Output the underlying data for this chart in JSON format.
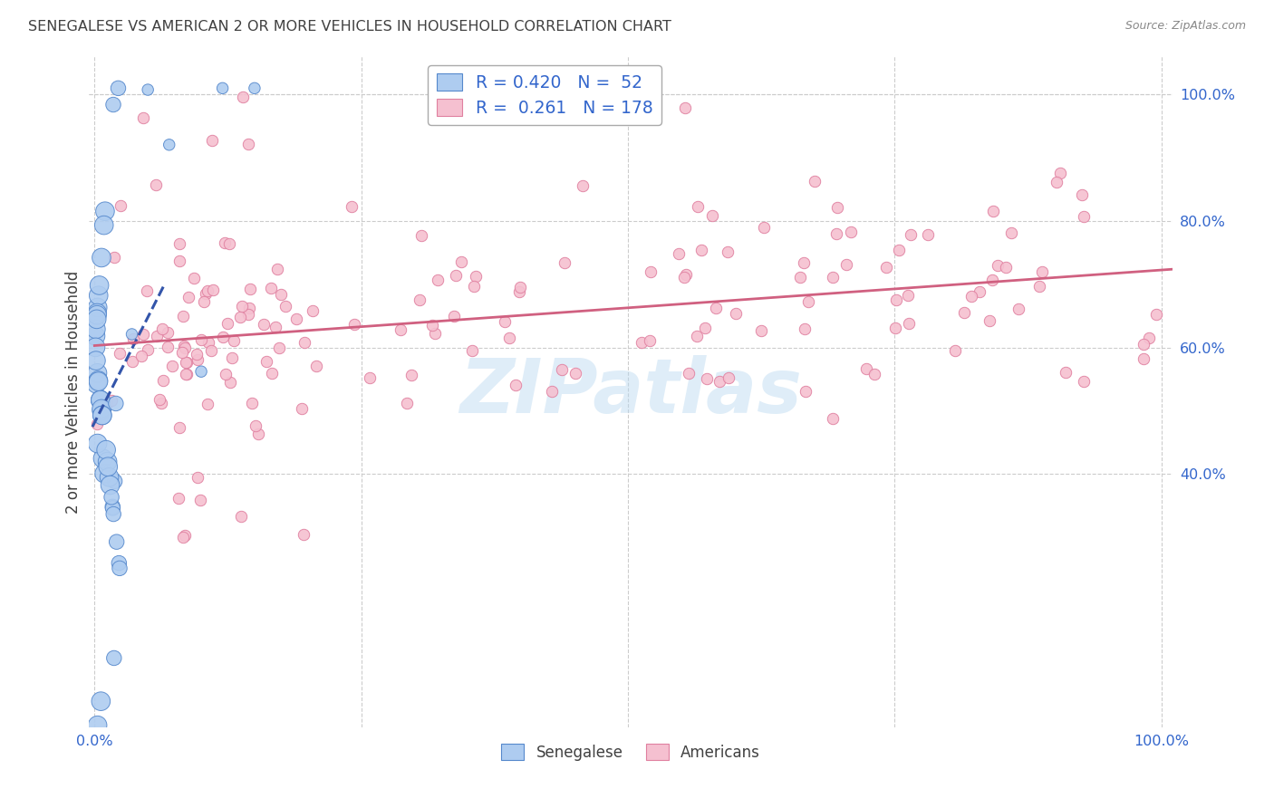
{
  "title": "SENEGALESE VS AMERICAN 2 OR MORE VEHICLES IN HOUSEHOLD CORRELATION CHART",
  "source": "Source: ZipAtlas.com",
  "ylabel": "2 or more Vehicles in Household",
  "watermark": "ZIPatlas",
  "legend_1_label": "Senegalese",
  "legend_1_R": "0.420",
  "legend_1_N": "52",
  "legend_1_color": "#aeccf0",
  "legend_1_edge_color": "#5588cc",
  "legend_1_line_color": "#3355aa",
  "legend_2_label": "Americans",
  "legend_2_R": "0.261",
  "legend_2_N": "178",
  "legend_2_color": "#f5c0d0",
  "legend_2_edge_color": "#e080a0",
  "legend_2_line_color": "#d06080",
  "text_color": "#3366cc",
  "title_color": "#404040",
  "background_color": "#ffffff",
  "grid_color": "#cccccc",
  "ylim": [
    0.0,
    1.06
  ],
  "xlim": [
    -0.005,
    1.01
  ],
  "yticks": [
    0.4,
    0.6,
    0.8,
    1.0
  ],
  "ytick_labels": [
    "40.0%",
    "60.0%",
    "80.0%",
    "100.0%"
  ]
}
